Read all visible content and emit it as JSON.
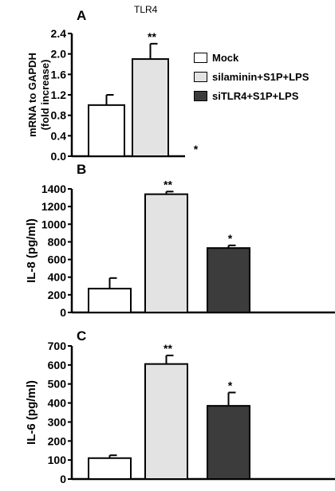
{
  "figure_title": "TLR4",
  "panels": [
    "A",
    "B",
    "C"
  ],
  "legend": [
    {
      "label": "Mock",
      "color": "#ffffff"
    },
    {
      "label": "silaminin+S1P+LPS",
      "color": "#e3e3e3"
    },
    {
      "label": "siTLR4+S1P+LPS",
      "color": "#3c3c3c"
    }
  ],
  "chart_data": [
    {
      "type": "bar",
      "panel": "A",
      "title": "",
      "ylabel": "mRNA to GAPDH\n(fold increase)",
      "xlabel": "",
      "ylim": [
        0,
        2.4
      ],
      "yticks": [
        "0.0",
        "0.4",
        "0.8",
        "1.2",
        "1.6",
        "2.0",
        "2.4"
      ],
      "categories": [
        "Mock",
        "silaminin+S1P+LPS",
        "siTLR4+S1P+LPS"
      ],
      "values": [
        1.0,
        1.9,
        0.0
      ],
      "errors": [
        0.2,
        0.3,
        0.0
      ],
      "annotations": [
        "",
        "**",
        "*"
      ]
    },
    {
      "type": "bar",
      "panel": "B",
      "title": "",
      "ylabel": "IL-8 (pg/ml)",
      "xlabel": "",
      "ylim": [
        0,
        1400
      ],
      "yticks": [
        "0",
        "200",
        "400",
        "600",
        "800",
        "1000",
        "1200",
        "1400"
      ],
      "categories": [
        "Mock",
        "silaminin+S1P+LPS",
        "siTLR4+S1P+LPS"
      ],
      "values": [
        270,
        1340,
        730
      ],
      "errors": [
        120,
        30,
        30
      ],
      "annotations": [
        "",
        "**",
        "*"
      ]
    },
    {
      "type": "bar",
      "panel": "C",
      "title": "",
      "ylabel": "IL-6 (pg/ml)",
      "xlabel": "",
      "ylim": [
        0,
        700
      ],
      "yticks": [
        "0",
        "100",
        "200",
        "300",
        "400",
        "500",
        "600",
        "700"
      ],
      "categories": [
        "Mock",
        "silaminin+S1P+LPS",
        "siTLR4+S1P+LPS"
      ],
      "values": [
        110,
        605,
        385
      ],
      "errors": [
        15,
        45,
        70
      ],
      "annotations": [
        "",
        "**",
        "*"
      ]
    }
  ]
}
